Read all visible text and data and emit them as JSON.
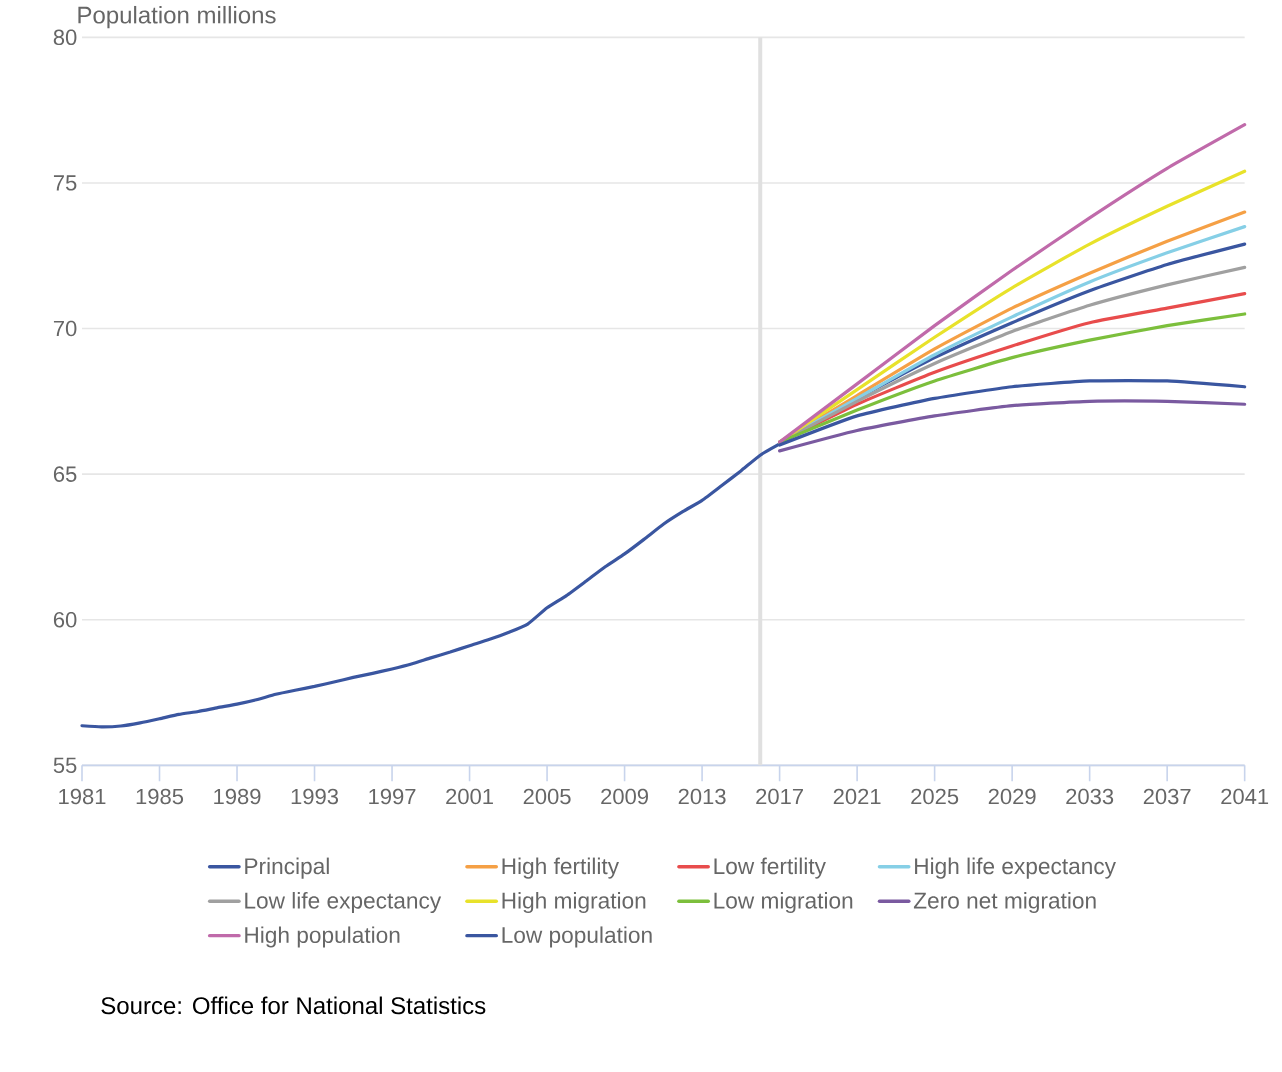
{
  "chart_data": {
    "type": "line",
    "ylabel": "Population millions",
    "xlim": [
      1981,
      2041
    ],
    "ylim": [
      55,
      80
    ],
    "xticks": [
      1981,
      1985,
      1989,
      1993,
      1997,
      2001,
      2005,
      2009,
      2013,
      2017,
      2021,
      2025,
      2029,
      2033,
      2037,
      2041
    ],
    "yticks": [
      55,
      60,
      65,
      70,
      75,
      80
    ],
    "grid": "y",
    "legend": "bottom",
    "line_style": "solid",
    "ref_lines": [
      {
        "axis": "x",
        "value": 2016,
        "color": "#e0e0e0"
      }
    ],
    "annotations": [
      "Source: Office for National Statistics"
    ],
    "series": [
      {
        "name": "Principal",
        "color": "#3a56a0",
        "x": [
          1981,
          1982,
          1983,
          1984,
          1985,
          1986,
          1987,
          1988,
          1989,
          1990,
          1991,
          1992,
          1993,
          1994,
          1995,
          1996,
          1997,
          1998,
          1999,
          2000,
          2001,
          2002,
          2003,
          2004,
          2005,
          2006,
          2007,
          2008,
          2009,
          2010,
          2011,
          2012,
          2013,
          2014,
          2015,
          2016,
          2017,
          2021,
          2025,
          2029,
          2033,
          2037,
          2041
        ],
        "values": [
          56.36,
          56.32,
          56.35,
          56.46,
          56.6,
          56.75,
          56.85,
          56.98,
          57.1,
          57.25,
          57.44,
          57.58,
          57.71,
          57.86,
          58.02,
          58.16,
          58.31,
          58.48,
          58.69,
          58.89,
          59.11,
          59.32,
          59.56,
          59.85,
          60.41,
          60.83,
          61.32,
          61.82,
          62.26,
          62.76,
          63.28,
          63.71,
          64.1,
          64.6,
          65.11,
          65.65,
          66.04,
          67.6,
          69.0,
          70.2,
          71.3,
          72.2,
          72.9
        ]
      },
      {
        "name": "High fertility",
        "color": "#f5a045",
        "x": [
          2017,
          2021,
          2025,
          2029,
          2033,
          2037,
          2041
        ],
        "values": [
          66.1,
          67.7,
          69.3,
          70.7,
          71.9,
          73.0,
          74.0
        ]
      },
      {
        "name": "Low fertility",
        "color": "#e84c4c",
        "x": [
          2017,
          2021,
          2025,
          2029,
          2033,
          2037,
          2041
        ],
        "values": [
          66.1,
          67.4,
          68.5,
          69.4,
          70.2,
          70.7,
          71.2
        ]
      },
      {
        "name": "High life expectancy",
        "color": "#86cfe6",
        "x": [
          2017,
          2021,
          2025,
          2029,
          2033,
          2037,
          2041
        ],
        "values": [
          66.1,
          67.6,
          69.1,
          70.4,
          71.6,
          72.6,
          73.5
        ]
      },
      {
        "name": "Low life expectancy",
        "color": "#a0a0a0",
        "x": [
          2017,
          2021,
          2025,
          2029,
          2033,
          2037,
          2041
        ],
        "values": [
          66.1,
          67.5,
          68.8,
          69.9,
          70.8,
          71.5,
          72.1
        ]
      },
      {
        "name": "High migration",
        "color": "#e8e22a",
        "x": [
          2017,
          2021,
          2025,
          2029,
          2033,
          2037,
          2041
        ],
        "values": [
          66.1,
          67.9,
          69.7,
          71.4,
          72.9,
          74.2,
          75.4
        ]
      },
      {
        "name": "Low migration",
        "color": "#7cbf3c",
        "x": [
          2017,
          2021,
          2025,
          2029,
          2033,
          2037,
          2041
        ],
        "values": [
          66.1,
          67.2,
          68.2,
          69.0,
          69.6,
          70.1,
          70.5
        ]
      },
      {
        "name": "Zero net migration",
        "color": "#7a5aa0",
        "x": [
          2017,
          2021,
          2025,
          2029,
          2033,
          2037,
          2041
        ],
        "values": [
          65.8,
          66.5,
          67.0,
          67.35,
          67.5,
          67.5,
          67.4
        ]
      },
      {
        "name": "High population",
        "color": "#c06aaa",
        "x": [
          2017,
          2021,
          2025,
          2029,
          2033,
          2037,
          2041
        ],
        "values": [
          66.1,
          68.1,
          70.1,
          72.0,
          73.8,
          75.5,
          77.0
        ]
      },
      {
        "name": "Low population",
        "color": "#3a56a0",
        "x": [
          2017,
          2021,
          2025,
          2029,
          2033,
          2037,
          2041
        ],
        "values": [
          66.0,
          67.0,
          67.6,
          68.0,
          68.2,
          68.2,
          68.0
        ]
      }
    ]
  }
}
